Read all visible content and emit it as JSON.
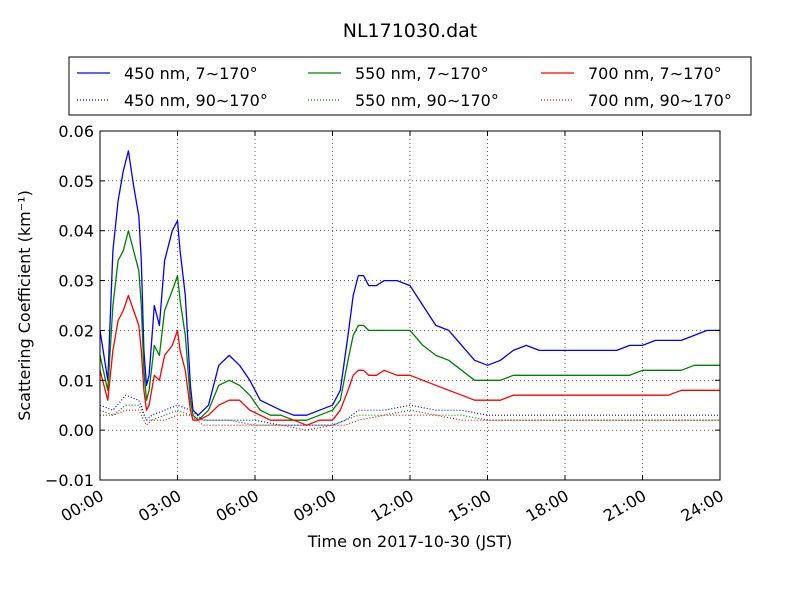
{
  "chart_data": {
    "type": "line",
    "title": "NL171030.dat",
    "xlabel": "Time on 2017-10-30 (JST)",
    "ylabel": "Scattering Coefficient (km⁻¹)",
    "xlim": [
      0,
      24
    ],
    "ylim": [
      -0.01,
      0.06
    ],
    "x_ticks": [
      "00:00",
      "03:00",
      "06:00",
      "09:00",
      "12:00",
      "15:00",
      "18:00",
      "21:00",
      "24:00"
    ],
    "y_ticks": [
      "−0.01",
      "0.00",
      "0.01",
      "0.02",
      "0.03",
      "0.04",
      "0.05",
      "0.06"
    ],
    "grid": true,
    "legend_position": "top",
    "x_unit": "hours",
    "series": [
      {
        "name": "450 nm, 7∼170°",
        "color": "#0000ff",
        "style": "solid",
        "x": [
          0.0,
          0.3,
          0.5,
          0.7,
          0.9,
          1.1,
          1.3,
          1.5,
          1.6,
          1.7,
          1.8,
          1.9,
          2.1,
          2.3,
          2.5,
          2.8,
          3.0,
          3.1,
          3.3,
          3.5,
          3.6,
          3.8,
          4.2,
          4.6,
          5.0,
          5.4,
          5.8,
          6.2,
          6.6,
          7.0,
          7.5,
          8.0,
          8.5,
          9.0,
          9.3,
          9.6,
          9.8,
          10.0,
          10.2,
          10.4,
          10.7,
          11.0,
          11.5,
          12.0,
          12.5,
          13.0,
          13.5,
          14.0,
          14.5,
          15.0,
          15.5,
          16.0,
          16.5,
          17.0,
          17.5,
          18.0,
          18.5,
          19.0,
          19.5,
          20.0,
          20.5,
          21.0,
          21.5,
          22.0,
          22.5,
          23.0,
          23.5,
          24.0
        ],
        "y": [
          0.02,
          0.01,
          0.036,
          0.046,
          0.052,
          0.056,
          0.049,
          0.043,
          0.034,
          0.016,
          0.009,
          0.011,
          0.025,
          0.021,
          0.034,
          0.04,
          0.042,
          0.036,
          0.027,
          0.009,
          0.004,
          0.003,
          0.005,
          0.013,
          0.015,
          0.013,
          0.01,
          0.006,
          0.005,
          0.004,
          0.003,
          0.003,
          0.004,
          0.005,
          0.008,
          0.019,
          0.027,
          0.031,
          0.031,
          0.029,
          0.029,
          0.03,
          0.03,
          0.029,
          0.025,
          0.021,
          0.02,
          0.017,
          0.014,
          0.013,
          0.014,
          0.016,
          0.017,
          0.016,
          0.016,
          0.016,
          0.016,
          0.016,
          0.016,
          0.016,
          0.017,
          0.017,
          0.018,
          0.018,
          0.018,
          0.019,
          0.02,
          0.02
        ]
      },
      {
        "name": "550 nm, 7∼170°",
        "color": "#008000",
        "style": "solid",
        "x": [
          0.0,
          0.3,
          0.5,
          0.7,
          0.9,
          1.1,
          1.3,
          1.5,
          1.6,
          1.7,
          1.8,
          1.9,
          2.1,
          2.3,
          2.5,
          2.8,
          3.0,
          3.1,
          3.3,
          3.5,
          3.6,
          3.8,
          4.2,
          4.6,
          5.0,
          5.4,
          5.8,
          6.2,
          6.6,
          7.0,
          7.5,
          8.0,
          8.5,
          9.0,
          9.3,
          9.6,
          9.8,
          10.0,
          10.2,
          10.4,
          10.7,
          11.0,
          11.5,
          12.0,
          12.5,
          13.0,
          13.5,
          14.0,
          14.5,
          15.0,
          15.5,
          16.0,
          16.5,
          17.0,
          17.5,
          18.0,
          18.5,
          19.0,
          19.5,
          20.0,
          20.5,
          21.0,
          21.5,
          22.0,
          22.5,
          23.0,
          23.5,
          24.0
        ],
        "y": [
          0.015,
          0.008,
          0.025,
          0.034,
          0.036,
          0.04,
          0.036,
          0.032,
          0.025,
          0.012,
          0.006,
          0.008,
          0.017,
          0.015,
          0.024,
          0.028,
          0.031,
          0.026,
          0.019,
          0.006,
          0.003,
          0.002,
          0.004,
          0.009,
          0.01,
          0.009,
          0.007,
          0.004,
          0.003,
          0.003,
          0.002,
          0.002,
          0.003,
          0.004,
          0.006,
          0.014,
          0.019,
          0.021,
          0.021,
          0.02,
          0.02,
          0.02,
          0.02,
          0.02,
          0.017,
          0.015,
          0.014,
          0.012,
          0.01,
          0.01,
          0.01,
          0.011,
          0.011,
          0.011,
          0.011,
          0.011,
          0.011,
          0.011,
          0.011,
          0.011,
          0.011,
          0.012,
          0.012,
          0.012,
          0.012,
          0.013,
          0.013,
          0.013
        ]
      },
      {
        "name": "700 nm, 7∼170°",
        "color": "#ff0000",
        "style": "solid",
        "x": [
          0.0,
          0.3,
          0.5,
          0.7,
          0.9,
          1.1,
          1.3,
          1.5,
          1.6,
          1.7,
          1.8,
          1.9,
          2.1,
          2.3,
          2.5,
          2.8,
          3.0,
          3.1,
          3.3,
          3.5,
          3.6,
          3.8,
          4.2,
          4.6,
          5.0,
          5.4,
          5.8,
          6.2,
          6.6,
          7.0,
          7.5,
          8.0,
          8.5,
          9.0,
          9.3,
          9.6,
          9.8,
          10.0,
          10.2,
          10.4,
          10.7,
          11.0,
          11.5,
          12.0,
          12.5,
          13.0,
          13.5,
          14.0,
          14.5,
          15.0,
          15.5,
          16.0,
          16.5,
          17.0,
          17.5,
          18.0,
          18.5,
          19.0,
          19.5,
          20.0,
          20.5,
          21.0,
          21.5,
          22.0,
          22.5,
          23.0,
          23.5,
          24.0
        ],
        "y": [
          0.012,
          0.006,
          0.016,
          0.022,
          0.024,
          0.027,
          0.024,
          0.021,
          0.016,
          0.008,
          0.004,
          0.005,
          0.011,
          0.01,
          0.015,
          0.017,
          0.02,
          0.016,
          0.012,
          0.004,
          0.002,
          0.002,
          0.003,
          0.005,
          0.006,
          0.006,
          0.004,
          0.003,
          0.002,
          0.002,
          0.002,
          0.001,
          0.002,
          0.002,
          0.004,
          0.008,
          0.011,
          0.012,
          0.012,
          0.011,
          0.011,
          0.012,
          0.011,
          0.011,
          0.01,
          0.009,
          0.008,
          0.007,
          0.006,
          0.006,
          0.006,
          0.007,
          0.007,
          0.007,
          0.007,
          0.007,
          0.007,
          0.007,
          0.007,
          0.007,
          0.007,
          0.007,
          0.007,
          0.007,
          0.008,
          0.008,
          0.008,
          0.008
        ]
      },
      {
        "name": "450 nm, 90∼170°",
        "color": "#0000ff",
        "style": "dotted",
        "x": [
          0.0,
          0.5,
          1.0,
          1.5,
          1.8,
          2.0,
          2.5,
          3.0,
          3.5,
          4.0,
          5.0,
          6.0,
          7.0,
          8.0,
          9.0,
          9.5,
          10.0,
          11.0,
          12.0,
          13.0,
          14.0,
          15.0,
          16.0,
          17.0,
          18.0,
          19.0,
          20.0,
          21.0,
          22.0,
          23.0,
          24.0
        ],
        "y": [
          0.005,
          0.004,
          0.007,
          0.006,
          0.002,
          0.003,
          0.004,
          0.005,
          0.004,
          0.002,
          0.002,
          0.002,
          0.001,
          0.001,
          0.001,
          0.002,
          0.004,
          0.004,
          0.005,
          0.004,
          0.004,
          0.003,
          0.003,
          0.003,
          0.003,
          0.003,
          0.003,
          0.003,
          0.003,
          0.003,
          0.003
        ]
      },
      {
        "name": "550 nm, 90∼170°",
        "color": "#008000",
        "style": "dotted",
        "x": [
          0.0,
          0.5,
          1.0,
          1.5,
          1.8,
          2.0,
          2.5,
          3.0,
          3.5,
          4.0,
          5.0,
          6.0,
          7.0,
          8.0,
          9.0,
          9.5,
          10.0,
          11.0,
          12.0,
          13.0,
          14.0,
          15.0,
          16.0,
          17.0,
          18.0,
          19.0,
          20.0,
          21.0,
          22.0,
          23.0,
          24.0
        ],
        "y": [
          0.004,
          0.003,
          0.005,
          0.005,
          0.002,
          0.002,
          0.003,
          0.004,
          0.003,
          0.002,
          0.002,
          0.001,
          0.001,
          0.001,
          0.001,
          0.002,
          0.003,
          0.003,
          0.004,
          0.003,
          0.003,
          0.002,
          0.002,
          0.002,
          0.002,
          0.002,
          0.002,
          0.002,
          0.002,
          0.002,
          0.002
        ]
      },
      {
        "name": "700 nm, 90∼170°",
        "color": "#ff0000",
        "style": "dotted",
        "x": [
          0.0,
          0.5,
          1.0,
          1.5,
          1.8,
          2.0,
          2.5,
          3.0,
          3.5,
          4.0,
          5.0,
          6.0,
          7.0,
          8.0,
          9.0,
          9.5,
          10.0,
          11.0,
          12.0,
          13.0,
          14.0,
          15.0,
          16.0,
          17.0,
          18.0,
          19.0,
          20.0,
          21.0,
          22.0,
          23.0,
          24.0
        ],
        "y": [
          0.003,
          0.003,
          0.004,
          0.004,
          0.001,
          0.002,
          0.002,
          0.003,
          0.003,
          0.001,
          0.001,
          0.001,
          0.001,
          0.0,
          0.001,
          0.001,
          0.002,
          0.003,
          0.003,
          0.003,
          0.002,
          0.002,
          0.002,
          0.002,
          0.002,
          0.002,
          0.002,
          0.002,
          0.002,
          0.002,
          0.002
        ]
      }
    ]
  }
}
